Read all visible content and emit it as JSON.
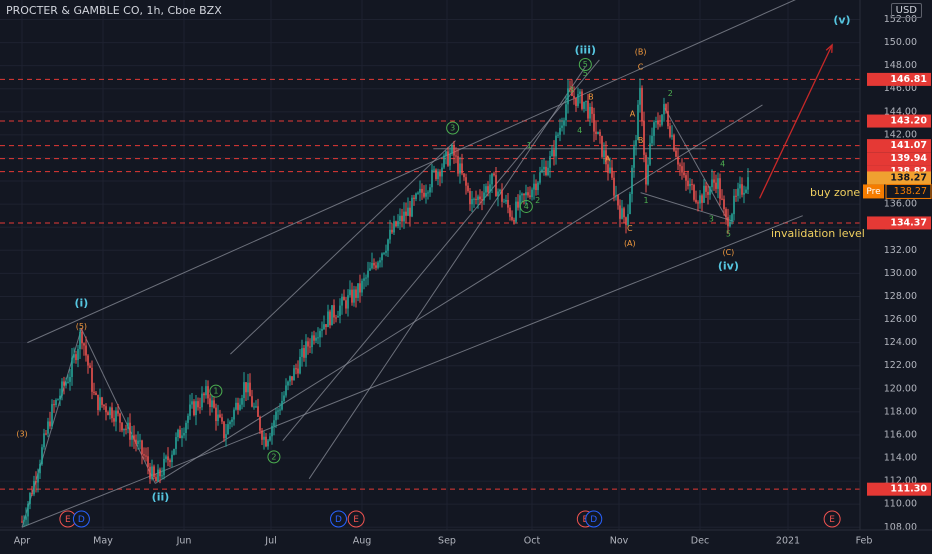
{
  "header": {
    "title": "PROCTER & GAMBLE CO, 1h, Cboe BZX",
    "currency": "USD"
  },
  "annotations": {
    "buy_zone": "buy zone",
    "invalidation": "invalidation level"
  },
  "colors": {
    "bg": "#131722",
    "up": "#26a69a",
    "down": "#ef5350",
    "hline": "#e53935",
    "wave_primary": "#56c6e0",
    "wave_minor": "#f29a3e",
    "wave_sub": "#4caf50",
    "projection": "#c62828"
  },
  "chart_data": {
    "type": "candlestick",
    "title": "PROCTER & GAMBLE CO, 1h, Cboe BZX",
    "xlabel": "",
    "ylabel": "",
    "ylim": [
      108,
      154
    ],
    "x_ticks": [
      "Apr",
      "May",
      "Jun",
      "Jul",
      "Aug",
      "Sep",
      "Oct",
      "Nov",
      "Dec",
      "2021",
      "Feb"
    ],
    "y_ticks": [
      108,
      110,
      112,
      114,
      116,
      118,
      120,
      122,
      124,
      126,
      128,
      130,
      132,
      134,
      136,
      138,
      140,
      142,
      144,
      146,
      148,
      150,
      152
    ],
    "price_path": [
      [
        "Apr",
        108.5
      ],
      [
        "Apr 5",
        111.5
      ],
      [
        "Apr 12",
        118
      ],
      [
        "Apr 19",
        121.5
      ],
      [
        "Apr 23",
        125
      ],
      [
        "Apr 28",
        119
      ],
      [
        "May 5",
        118
      ],
      [
        "May 12",
        116
      ],
      [
        "May 17",
        114
      ],
      [
        "May 21",
        111.8
      ],
      [
        "May 26",
        114
      ],
      [
        "Jun 3",
        118
      ],
      [
        "Jun 9",
        119.6
      ],
      [
        "Jun 15",
        116
      ],
      [
        "Jun 22",
        120.5
      ],
      [
        "Jun 29",
        115.5
      ],
      [
        "Jul 8",
        121
      ],
      [
        "Jul 16",
        125
      ],
      [
        "Jul 24",
        127
      ],
      [
        "Jul 31",
        128.5
      ],
      [
        "Aug 6",
        131
      ],
      [
        "Aug 13",
        134
      ],
      [
        "Aug 20",
        136
      ],
      [
        "Aug 27",
        138.5
      ],
      [
        "Sep 3",
        140.5
      ],
      [
        "Sep 10",
        136
      ],
      [
        "Sep 17",
        138
      ],
      [
        "Sep 24",
        135
      ],
      [
        "Oct 1",
        137.5
      ],
      [
        "Oct 8",
        140
      ],
      [
        "Oct 14",
        145.5
      ],
      [
        "Oct 20",
        144.8
      ],
      [
        "Oct 27",
        140
      ],
      [
        "Nov 2",
        135
      ],
      [
        "Nov 4",
        134.8
      ],
      [
        "Nov 9",
        146
      ],
      [
        "Nov 11",
        137.5
      ],
      [
        "Nov 13",
        142
      ],
      [
        "Nov 18",
        144.3
      ],
      [
        "Nov 25",
        138
      ],
      [
        "Dec 1",
        136.5
      ],
      [
        "Dec 7",
        138.2
      ],
      [
        "Dec 10",
        134.4
      ],
      [
        "Dec 15",
        137
      ],
      [
        "Dec 18",
        138.2
      ]
    ],
    "horizontal_levels": [
      {
        "value": 146.81,
        "label": "146.81"
      },
      {
        "value": 143.2,
        "label": "143.20"
      },
      {
        "value": 141.07,
        "label": "141.07"
      },
      {
        "value": 139.94,
        "label": "139.94"
      },
      {
        "value": 138.82,
        "label": "138.82"
      },
      {
        "value": 134.37,
        "label": "134.37"
      },
      {
        "value": 111.3,
        "label": "111.30"
      }
    ],
    "current_price": {
      "value": 138.27,
      "label": "138.27",
      "pre_label": "Pre",
      "pre_value": "138.27"
    },
    "projection": {
      "from": [
        "Dec 22",
        136.5
      ],
      "to": [
        "Jan 19",
        149.8
      ]
    },
    "wave_labels": [
      {
        "text": "(i)",
        "date": "Apr 23",
        "price": 127.4,
        "group": "primary"
      },
      {
        "text": "(ii)",
        "date": "May 23",
        "price": 110.6,
        "group": "primary"
      },
      {
        "text": "(iii)",
        "date": "Oct 20",
        "price": 149.3,
        "group": "primary"
      },
      {
        "text": "(iv)",
        "date": "Dec 11",
        "price": 130.6,
        "group": "primary"
      },
      {
        "text": "(v)",
        "date": "Jan 23",
        "price": 151.9,
        "group": "primary"
      },
      {
        "text": "(3)",
        "date": "Apr 1",
        "price": 116.1,
        "group": "minor"
      },
      {
        "text": "(5)",
        "date": "Apr 23",
        "price": 125.4,
        "group": "minor"
      },
      {
        "text": "(B)",
        "date": "Nov 9",
        "price": 149.2,
        "group": "minor"
      },
      {
        "text": "C",
        "date": "Nov 9",
        "price": 147.9,
        "group": "minor"
      },
      {
        "text": "A",
        "date": "Nov 6",
        "price": 143.8,
        "group": "minor"
      },
      {
        "text": "B",
        "date": "Nov 9",
        "price": 141.5,
        "group": "minor"
      },
      {
        "text": "B",
        "date": "Oct 22",
        "price": 145.3,
        "group": "minor"
      },
      {
        "text": "A",
        "date": "Oct 28",
        "price": 139.9,
        "group": "minor"
      },
      {
        "text": "C",
        "date": "Nov 5",
        "price": 133.9,
        "group": "minor"
      },
      {
        "text": "(A)",
        "date": "Nov 5",
        "price": 132.6,
        "group": "minor"
      },
      {
        "text": "(C)",
        "date": "Dec 11",
        "price": 131.8,
        "group": "minor"
      },
      {
        "text": "1",
        "date": "Jun 12",
        "price": 119.8,
        "group": "sub",
        "circled": true
      },
      {
        "text": "2",
        "date": "Jul 2",
        "price": 114.1,
        "group": "sub",
        "circled": true
      },
      {
        "text": "3",
        "date": "Sep 3",
        "price": 142.6,
        "group": "sub",
        "circled": true
      },
      {
        "text": "4",
        "date": "Sep 29",
        "price": 135.8,
        "group": "sub",
        "circled": true
      },
      {
        "text": "5",
        "date": "Oct 20",
        "price": 148.1,
        "group": "sub",
        "circled": true
      },
      {
        "text": "1",
        "date": "Sep 30",
        "price": 141.1,
        "group": "sub"
      },
      {
        "text": "2",
        "date": "Oct 3",
        "price": 136.3,
        "group": "sub"
      },
      {
        "text": "3",
        "date": "Oct 15",
        "price": 145.9,
        "group": "sub"
      },
      {
        "text": "4",
        "date": "Oct 18",
        "price": 142.4,
        "group": "sub"
      },
      {
        "text": "5",
        "date": "Oct 20",
        "price": 147.3,
        "group": "sub"
      },
      {
        "text": "2",
        "date": "Nov 20",
        "price": 145.6,
        "group": "sub"
      },
      {
        "text": "1",
        "date": "Nov 11",
        "price": 136.3,
        "group": "sub"
      },
      {
        "text": "4",
        "date": "Dec 9",
        "price": 139.5,
        "group": "sub"
      },
      {
        "text": "3",
        "date": "Dec 5",
        "price": 134.7,
        "group": "sub"
      },
      {
        "text": "5",
        "date": "Dec 11",
        "price": 133.4,
        "group": "sub"
      }
    ],
    "events": [
      {
        "text": "E",
        "date": "Apr 18",
        "type": "earnings"
      },
      {
        "text": "D",
        "date": "Apr 23",
        "type": "dividend"
      },
      {
        "text": "D",
        "date": "Jul 24",
        "type": "dividend"
      },
      {
        "text": "E",
        "date": "Jul 30",
        "type": "earnings"
      },
      {
        "text": "E",
        "date": "Oct 20",
        "type": "earnings"
      },
      {
        "text": "D",
        "date": "Oct 23",
        "type": "dividend"
      },
      {
        "text": "E",
        "date": "Jan 19",
        "type": "earnings"
      }
    ],
    "trendlines": [
      {
        "from": [
          "Apr 1",
          108
        ],
        "to": [
          "Apr 23",
          125.2
        ]
      },
      {
        "from": [
          "Apr 23",
          125.2
        ],
        "to": [
          "May 21",
          111.8
        ]
      },
      {
        "from": [
          "Apr 3",
          124
        ],
        "to": [
          "Jan 7",
          154
        ]
      },
      {
        "from": [
          "Apr 1",
          108
        ],
        "to": [
          "Jan 7",
          135
        ]
      },
      {
        "from": [
          "May 21",
          111.8
        ],
        "to": [
          "Dec 23",
          144.6
        ]
      },
      {
        "from": [
          "Jul 5",
          115.5
        ],
        "to": [
          "Oct 25",
          148.5
        ]
      },
      {
        "from": [
          "Jun 17",
          123
        ],
        "to": [
          "Sep 4",
          141.5
        ]
      },
      {
        "from": [
          "Jul 14",
          112.2
        ],
        "to": [
          "Oct 20",
          147.9
        ]
      },
      {
        "from": [
          "Nov 9",
          137
        ],
        "to": [
          "Dec 13",
          134.5
        ]
      },
      {
        "from": [
          "Nov 18",
          144.3
        ],
        "to": [
          "Dec 11",
          134.5
        ]
      },
      {
        "from": [
          "Aug 27",
          140.8
        ],
        "to": [
          "Dec 3",
          140.8
        ]
      }
    ]
  }
}
